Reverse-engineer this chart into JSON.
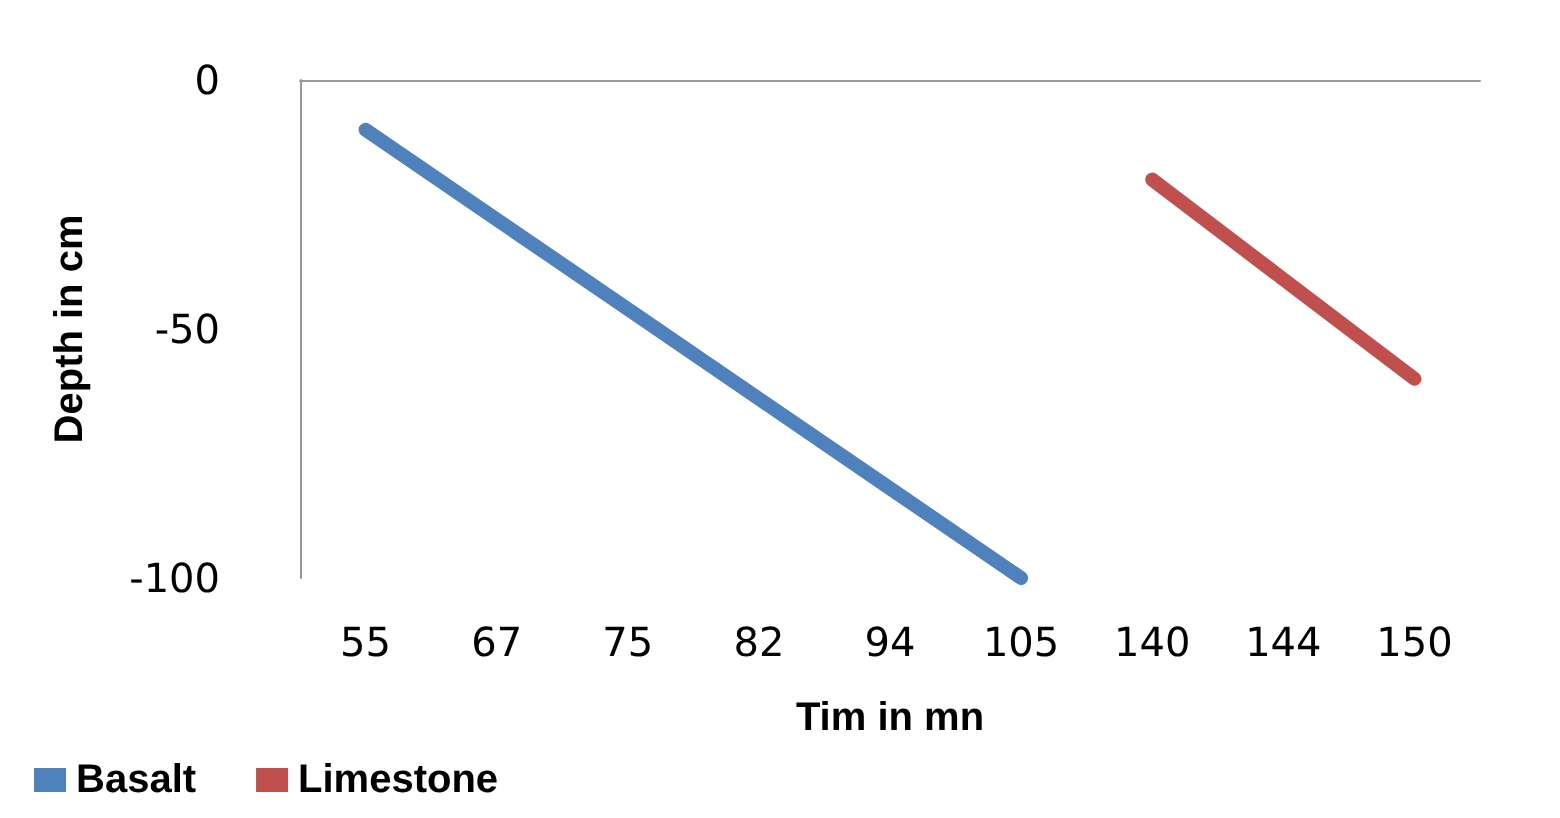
{
  "chart_data": {
    "type": "line",
    "xlabel": "Tim in mn",
    "ylabel": "Depth in cm",
    "categories": [
      "55",
      "67",
      "75",
      "82",
      "94",
      "105",
      "140",
      "144",
      "150"
    ],
    "series": [
      {
        "name": "Basalt",
        "color": "#4f81bd",
        "values": [
          -10,
          -28,
          -46,
          -64,
          -82,
          -100,
          null,
          null,
          null
        ]
      },
      {
        "name": "Limestone",
        "color": "#c0504d",
        "values": [
          null,
          null,
          null,
          null,
          null,
          null,
          -20,
          -40,
          -60
        ]
      }
    ],
    "ylim": [
      -100,
      0
    ],
    "yticks": [
      -100,
      -50,
      0
    ],
    "grid": false,
    "legend": "bottom left",
    "line_style": "solid"
  }
}
